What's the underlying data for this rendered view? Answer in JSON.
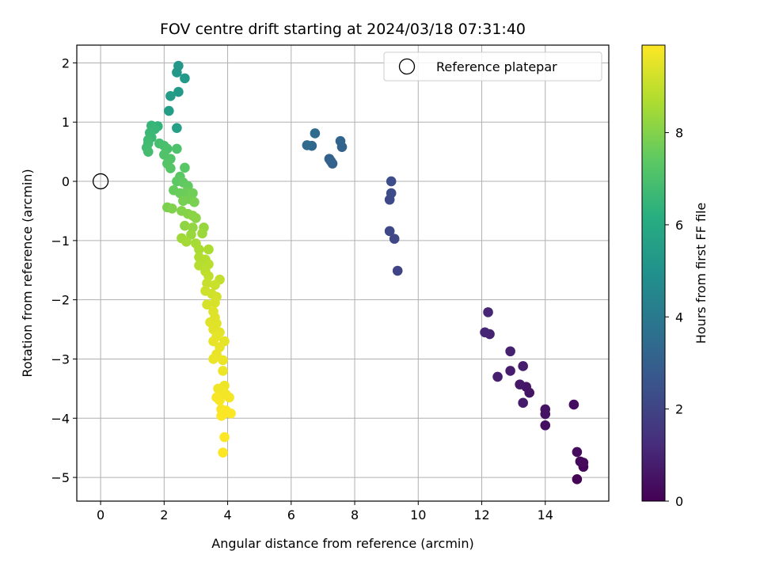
{
  "chart_data": {
    "type": "scatter",
    "title": "FOV centre drift starting at 2024/03/18 07:31:40",
    "xlabel": "Angular distance from reference (arcmin)",
    "ylabel": "Rotation from reference (arcmin)",
    "xlim": [
      -0.75,
      16.0
    ],
    "ylim": [
      -5.4,
      2.3
    ],
    "xticks": [
      0,
      2,
      4,
      6,
      8,
      10,
      12,
      14
    ],
    "yticks": [
      -5,
      -4,
      -3,
      -2,
      -1,
      0,
      1,
      2
    ],
    "grid": true,
    "legend_position": "top-right",
    "colormap": "viridis",
    "colorbar": {
      "label": "Hours from first FF file",
      "range": [
        0,
        9.9
      ],
      "ticks": [
        0,
        2,
        4,
        6,
        8
      ]
    },
    "reference": {
      "name": "Reference platepar",
      "x": 0,
      "y": 0
    },
    "point_fields": [
      "x",
      "y",
      "hours"
    ],
    "points": [
      [
        15.0,
        -5.03,
        0.1
      ],
      [
        15.2,
        -4.82,
        0.15
      ],
      [
        15.1,
        -4.73,
        0.2
      ],
      [
        15.2,
        -4.75,
        0.25
      ],
      [
        15.0,
        -4.57,
        0.3
      ],
      [
        14.9,
        -3.77,
        0.35
      ],
      [
        14.0,
        -4.12,
        0.4
      ],
      [
        14.0,
        -3.93,
        0.45
      ],
      [
        14.0,
        -3.85,
        0.5
      ],
      [
        13.5,
        -3.57,
        0.55
      ],
      [
        13.4,
        -3.47,
        0.6
      ],
      [
        13.2,
        -3.43,
        0.65
      ],
      [
        13.3,
        -3.74,
        0.7
      ],
      [
        13.3,
        -3.12,
        0.75
      ],
      [
        12.9,
        -3.2,
        0.8
      ],
      [
        12.5,
        -3.3,
        0.85
      ],
      [
        12.9,
        -2.87,
        0.9
      ],
      [
        12.25,
        -2.58,
        0.95
      ],
      [
        12.1,
        -2.55,
        1.0
      ],
      [
        12.2,
        -2.21,
        1.05
      ],
      [
        9.35,
        -1.51,
        2.0
      ],
      [
        9.25,
        -0.97,
        2.1
      ],
      [
        9.1,
        -0.84,
        2.15
      ],
      [
        9.1,
        -0.31,
        2.2
      ],
      [
        9.15,
        -0.2,
        2.25
      ],
      [
        9.15,
        0.0,
        2.3
      ],
      [
        7.3,
        0.3,
        3.0
      ],
      [
        7.2,
        0.38,
        3.05
      ],
      [
        7.25,
        0.34,
        3.1
      ],
      [
        7.6,
        0.58,
        3.15
      ],
      [
        7.55,
        0.68,
        3.2
      ],
      [
        6.65,
        0.6,
        3.3
      ],
      [
        6.5,
        0.61,
        3.4
      ],
      [
        6.75,
        0.81,
        3.45
      ],
      [
        2.45,
        1.95,
        5.2
      ],
      [
        2.4,
        1.84,
        5.25
      ],
      [
        2.65,
        1.74,
        5.3
      ],
      [
        2.45,
        1.51,
        5.35
      ],
      [
        2.2,
        1.44,
        5.4
      ],
      [
        2.15,
        1.19,
        5.45
      ],
      [
        2.4,
        0.9,
        5.6
      ],
      [
        1.8,
        0.93,
        6.4
      ],
      [
        1.6,
        0.94,
        6.5
      ],
      [
        1.7,
        0.88,
        6.55
      ],
      [
        1.55,
        0.82,
        6.6
      ],
      [
        1.6,
        0.74,
        6.65
      ],
      [
        1.5,
        0.7,
        6.7
      ],
      [
        1.5,
        0.64,
        6.75
      ],
      [
        1.45,
        0.57,
        6.8
      ],
      [
        1.5,
        0.5,
        6.85
      ],
      [
        1.85,
        0.64,
        6.9
      ],
      [
        2.0,
        0.6,
        6.95
      ],
      [
        2.1,
        0.55,
        7.0
      ],
      [
        2.4,
        0.55,
        7.05
      ],
      [
        2.0,
        0.45,
        7.1
      ],
      [
        2.2,
        0.38,
        7.15
      ],
      [
        2.1,
        0.3,
        7.2
      ],
      [
        2.2,
        0.22,
        7.25
      ],
      [
        2.65,
        0.23,
        7.3
      ],
      [
        2.5,
        0.08,
        7.35
      ],
      [
        2.4,
        0.0,
        7.4
      ],
      [
        2.6,
        -0.02,
        7.45
      ],
      [
        2.75,
        -0.08,
        7.5
      ],
      [
        2.3,
        -0.15,
        7.55
      ],
      [
        2.5,
        -0.2,
        7.6
      ],
      [
        2.7,
        -0.18,
        7.65
      ],
      [
        2.9,
        -0.2,
        7.7
      ],
      [
        2.8,
        -0.3,
        7.75
      ],
      [
        2.6,
        -0.33,
        7.8
      ],
      [
        2.95,
        -0.35,
        7.85
      ],
      [
        2.1,
        -0.44,
        7.9
      ],
      [
        2.25,
        -0.46,
        7.95
      ],
      [
        2.55,
        -0.5,
        8.0
      ],
      [
        2.75,
        -0.55,
        8.05
      ],
      [
        2.9,
        -0.58,
        8.1
      ],
      [
        3.0,
        -0.62,
        8.15
      ],
      [
        2.65,
        -0.75,
        8.2
      ],
      [
        2.9,
        -0.78,
        8.25
      ],
      [
        3.25,
        -0.78,
        8.3
      ],
      [
        2.85,
        -0.9,
        8.35
      ],
      [
        3.2,
        -0.88,
        8.4
      ],
      [
        2.55,
        -0.96,
        8.45
      ],
      [
        2.7,
        -1.02,
        8.5
      ],
      [
        3.0,
        -1.05,
        8.55
      ],
      [
        3.1,
        -1.15,
        8.6
      ],
      [
        3.4,
        -1.15,
        8.65
      ],
      [
        3.1,
        -1.28,
        8.7
      ],
      [
        3.3,
        -1.32,
        8.75
      ],
      [
        3.1,
        -1.42,
        8.8
      ],
      [
        3.4,
        -1.4,
        8.85
      ],
      [
        3.3,
        -1.52,
        8.9
      ],
      [
        3.4,
        -1.6,
        8.95
      ],
      [
        3.75,
        -1.66,
        9.0
      ],
      [
        3.35,
        -1.72,
        9.05
      ],
      [
        3.6,
        -1.75,
        9.1
      ],
      [
        3.3,
        -1.85,
        9.15
      ],
      [
        3.5,
        -1.9,
        9.2
      ],
      [
        3.65,
        -1.95,
        9.25
      ],
      [
        3.35,
        -2.08,
        9.3
      ],
      [
        3.6,
        -2.05,
        9.35
      ],
      [
        3.55,
        -2.2,
        9.4
      ],
      [
        3.6,
        -2.3,
        9.42
      ],
      [
        3.45,
        -2.38,
        9.44
      ],
      [
        3.65,
        -2.4,
        9.46
      ],
      [
        3.55,
        -2.5,
        9.48
      ],
      [
        3.75,
        -2.55,
        9.5
      ],
      [
        3.65,
        -2.62,
        9.52
      ],
      [
        3.9,
        -2.7,
        9.54
      ],
      [
        3.55,
        -2.7,
        9.56
      ],
      [
        3.75,
        -2.8,
        9.58
      ],
      [
        3.65,
        -2.92,
        9.6
      ],
      [
        3.55,
        -3.0,
        9.62
      ],
      [
        3.85,
        -3.02,
        9.64
      ],
      [
        3.85,
        -3.2,
        9.66
      ],
      [
        3.9,
        -3.45,
        9.68
      ],
      [
        3.7,
        -3.5,
        9.7
      ],
      [
        3.85,
        -3.58,
        9.72
      ],
      [
        3.95,
        -3.6,
        9.74
      ],
      [
        4.05,
        -3.65,
        9.76
      ],
      [
        3.75,
        -3.7,
        9.78
      ],
      [
        3.65,
        -3.65,
        9.8
      ],
      [
        3.8,
        -3.85,
        9.82
      ],
      [
        3.9,
        -3.92,
        9.84
      ],
      [
        4.1,
        -3.92,
        9.86
      ],
      [
        3.95,
        -3.87,
        9.87
      ],
      [
        3.8,
        -3.96,
        9.88
      ],
      [
        3.9,
        -4.32,
        9.89
      ],
      [
        3.85,
        -4.58,
        9.9
      ]
    ]
  }
}
